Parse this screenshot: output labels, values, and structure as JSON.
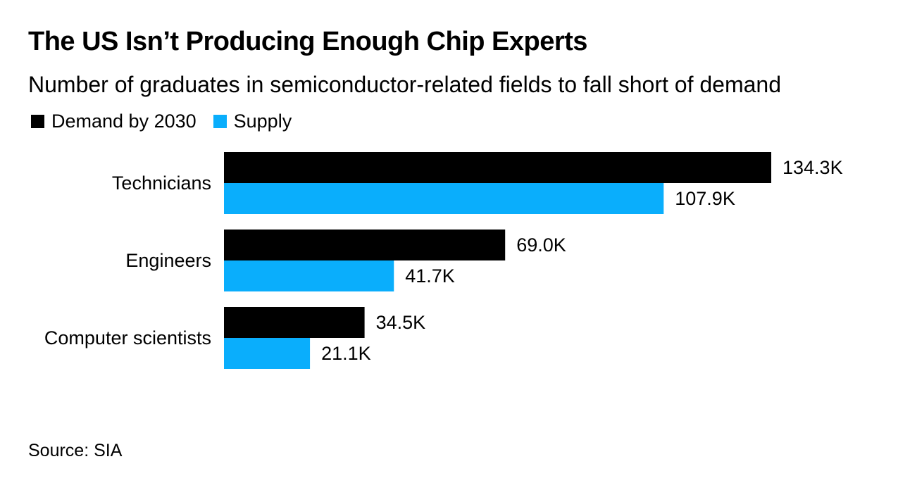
{
  "title": "The US Isn’t Producing Enough Chip Experts",
  "subtitle": "Number of graduates in semiconductor-related fields to fall short of demand",
  "source": "Source: SIA",
  "colors": {
    "demand": "#000000",
    "supply": "#0aaefc"
  },
  "chart_data": {
    "type": "bar",
    "orientation": "horizontal",
    "categories": [
      "Technicians",
      "Engineers",
      "Computer scientists"
    ],
    "series": [
      {
        "name": "Demand by 2030",
        "values": [
          134.3,
          69.0,
          34.5
        ],
        "labels": [
          "134.3K",
          "69.0K",
          "34.5K"
        ]
      },
      {
        "name": "Supply",
        "values": [
          107.9,
          41.7,
          21.1
        ],
        "labels": [
          "107.9K",
          "41.7K",
          "21.1K"
        ]
      }
    ],
    "unit": "thousands",
    "xlim": [
      0,
      134.3
    ],
    "grid": false,
    "legend_position": "top-left"
  }
}
